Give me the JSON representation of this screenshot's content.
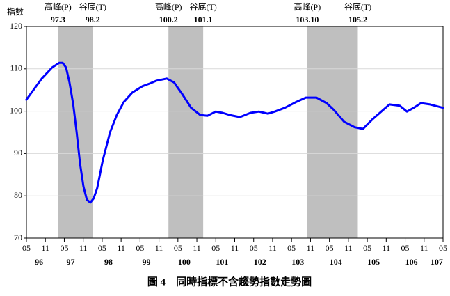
{
  "chart_data": {
    "type": "line",
    "title": "圖 4　同時指標不含趨勢指數走勢圖",
    "ylabel": "指數",
    "xlim": [
      96.3333,
      107.3333
    ],
    "ylim": [
      70,
      120
    ],
    "yticks": [
      70,
      80,
      90,
      100,
      110,
      120
    ],
    "grid": true,
    "xticks": [
      {
        "value": 96.3333,
        "label": "05"
      },
      {
        "value": 96.8333,
        "label": "11"
      },
      {
        "value": 97.3333,
        "label": "05"
      },
      {
        "value": 97.8333,
        "label": "11"
      },
      {
        "value": 98.3333,
        "label": "05"
      },
      {
        "value": 98.8333,
        "label": "11"
      },
      {
        "value": 99.3333,
        "label": "05"
      },
      {
        "value": 99.8333,
        "label": "11"
      },
      {
        "value": 100.3333,
        "label": "05"
      },
      {
        "value": 100.8333,
        "label": "11"
      },
      {
        "value": 101.3333,
        "label": "05"
      },
      {
        "value": 101.8333,
        "label": "11"
      },
      {
        "value": 102.3333,
        "label": "05"
      },
      {
        "value": 102.8333,
        "label": "11"
      },
      {
        "value": 103.3333,
        "label": "05"
      },
      {
        "value": 103.8333,
        "label": "11"
      },
      {
        "value": 104.3333,
        "label": "05"
      },
      {
        "value": 104.8333,
        "label": "11"
      },
      {
        "value": 105.3333,
        "label": "05"
      },
      {
        "value": 105.8333,
        "label": "11"
      },
      {
        "value": 106.3333,
        "label": "05"
      },
      {
        "value": 106.8333,
        "label": "11"
      },
      {
        "value": 107.3333,
        "label": "05"
      }
    ],
    "xyears": [
      96,
      97,
      98,
      99,
      100,
      101,
      102,
      103,
      104,
      105,
      106,
      107
    ],
    "cycles": [
      {
        "peak_label": "高峰(P)",
        "peak": {
          "value": 97.1667,
          "label": "97.3"
        },
        "trough_label": "谷底(T)",
        "trough": {
          "value": 98.0833,
          "label": "98.2"
        }
      },
      {
        "peak_label": "高峰(P)",
        "peak": {
          "value": 100.0833,
          "label": "100.2"
        },
        "trough_label": "谷底(T)",
        "trough": {
          "value": 101.0,
          "label": "101.1"
        }
      },
      {
        "peak_label": "高峰(P)",
        "peak": {
          "value": 103.75,
          "label": "103.10"
        },
        "trough_label": "谷底(T)",
        "trough": {
          "value": 105.0833,
          "label": "105.2"
        }
      }
    ],
    "shade_color": "#bfbfbf",
    "series": [
      {
        "color": "#0000ff",
        "x": [
          96.33,
          96.74,
          97.01,
          97.2,
          97.29,
          97.38,
          97.47,
          97.57,
          97.66,
          97.75,
          97.84,
          97.93,
          98.02,
          98.11,
          98.2,
          98.35,
          98.54,
          98.72,
          98.9,
          99.13,
          99.4,
          99.58,
          99.77,
          100.04,
          100.23,
          100.45,
          100.68,
          100.92,
          101.11,
          101.33,
          101.51,
          101.7,
          101.97,
          102.25,
          102.47,
          102.71,
          102.89,
          103.16,
          103.44,
          103.71,
          103.99,
          104.26,
          104.45,
          104.72,
          105.0,
          105.22,
          105.46,
          105.7,
          105.92,
          106.19,
          106.38,
          106.56,
          106.75,
          106.99,
          107.33
        ],
        "values": [
          102.7,
          107.7,
          110.3,
          111.4,
          111.4,
          110.3,
          106.8,
          101.6,
          95,
          87.6,
          82.2,
          79.1,
          78.4,
          79.4,
          81.8,
          88.4,
          95,
          99.1,
          102.1,
          104.4,
          105.9,
          106.5,
          107.2,
          107.7,
          106.8,
          104.0,
          100.8,
          99.1,
          98.9,
          99.9,
          99.6,
          99.1,
          98.6,
          99.6,
          99.9,
          99.4,
          99.9,
          100.8,
          102.1,
          103.2,
          103.2,
          101.9,
          100.3,
          97.5,
          96.2,
          95.8,
          98,
          99.9,
          101.6,
          101.3,
          99.9,
          100.8,
          101.9,
          101.6,
          100.8
        ]
      }
    ]
  }
}
